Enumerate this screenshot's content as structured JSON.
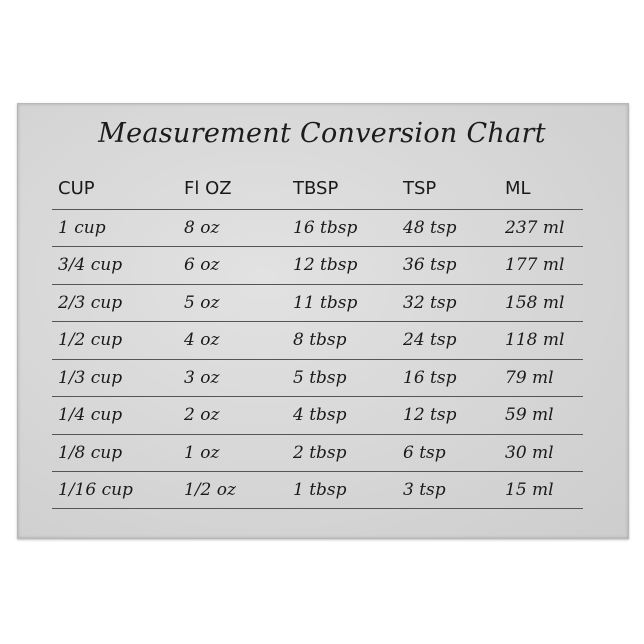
{
  "title": "Measurement Conversion Chart",
  "headers": [
    "CUP",
    "Fl OZ",
    "TBSP",
    "TSP",
    "ML"
  ],
  "rows": [
    [
      "1 cup",
      "8 oz",
      "16 tbsp",
      "48 tsp",
      "237 ml"
    ],
    [
      "3/4 cup",
      "6 oz",
      "12 tbsp",
      "36 tsp",
      "177 ml"
    ],
    [
      "2/3 cup",
      "5 oz",
      "11 tbsp",
      "32 tsp",
      "158 ml"
    ],
    [
      "1/2 cup",
      "4 oz",
      "8 tbsp",
      "24 tsp",
      "118 ml"
    ],
    [
      "1/3 cup",
      "3 oz",
      "5 tbsp",
      "16 tsp",
      "79 ml"
    ],
    [
      "1/4 cup",
      "2 oz",
      "4 tbsp",
      "12 tsp",
      "59 ml"
    ],
    [
      "1/8 cup",
      "1 oz",
      "2 tbsp",
      "6 tsp",
      "30 ml"
    ],
    [
      "1/16 cup",
      "1/2 oz",
      "1 tbsp",
      "3 tsp",
      "15 ml"
    ]
  ]
}
